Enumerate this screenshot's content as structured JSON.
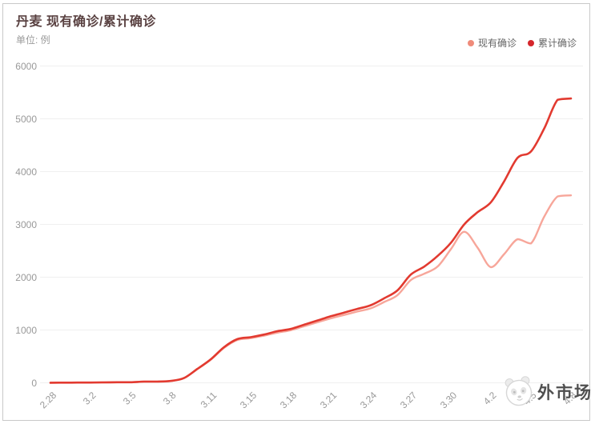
{
  "card": {
    "title": "丹麦 现有确诊/累计确诊",
    "unit_label": "单位: 例"
  },
  "legend": [
    {
      "label": "现有确诊",
      "color": "#ef8b7a"
    },
    {
      "label": "累计确诊",
      "color": "#d5262b"
    }
  ],
  "watermark": {
    "text": "外市场",
    "logo": "panda-logo"
  },
  "chart_data": {
    "type": "line",
    "title": "丹麦 现有确诊/累计确诊",
    "unit": "例",
    "legend_position": "top-right",
    "grid": true,
    "smooth": true,
    "ylim": [
      0,
      6000
    ],
    "y_ticks": [
      0,
      1000,
      2000,
      3000,
      4000,
      5000,
      6000
    ],
    "x_tick_labels_shown": [
      "2.28",
      "3.2",
      "3.5",
      "3.8",
      "3.11",
      "3.15",
      "3.18",
      "3.21",
      "3.24",
      "3.27",
      "3.30",
      "4.2",
      "4.5",
      "4.8"
    ],
    "x_label_every": 3,
    "categories": [
      "2.28",
      "2.29",
      "3.1",
      "3.2",
      "3.3",
      "3.4",
      "3.5",
      "3.6",
      "3.7",
      "3.8",
      "3.9",
      "3.10",
      "3.11",
      "3.12",
      "3.14",
      "3.15",
      "3.16",
      "3.17",
      "3.18",
      "3.19",
      "3.20",
      "3.21",
      "3.22",
      "3.23",
      "3.24",
      "3.25",
      "3.26",
      "3.27",
      "3.28",
      "3.29",
      "3.30",
      "3.31",
      "4.1",
      "4.2",
      "4.3",
      "4.4",
      "4.5",
      "4.6",
      "4.7",
      "4.8"
    ],
    "series": [
      {
        "name": "现有确诊",
        "color": "#f7a69a",
        "width": 2.4,
        "values": [
          1,
          3,
          4,
          5,
          8,
          10,
          10,
          23,
          23,
          34,
          88,
          258,
          435,
          660,
          810,
          845,
          893,
          950,
          995,
          1070,
          1145,
          1220,
          1285,
          1350,
          1410,
          1530,
          1660,
          1945,
          2065,
          2200,
          2530,
          2860,
          2560,
          2190,
          2440,
          2720,
          2640,
          3150,
          3530,
          3550
        ]
      },
      {
        "name": "累计确诊",
        "color": "#e23a30",
        "width": 2.6,
        "values": [
          1,
          3,
          4,
          5,
          8,
          10,
          10,
          23,
          23,
          35,
          90,
          262,
          442,
          674,
          827,
          864,
          914,
          977,
          1020,
          1100,
          1180,
          1260,
          1330,
          1400,
          1470,
          1600,
          1750,
          2050,
          2200,
          2400,
          2650,
          3000,
          3230,
          3420,
          3820,
          4260,
          4380,
          4820,
          5360,
          5385
        ]
      }
    ]
  }
}
